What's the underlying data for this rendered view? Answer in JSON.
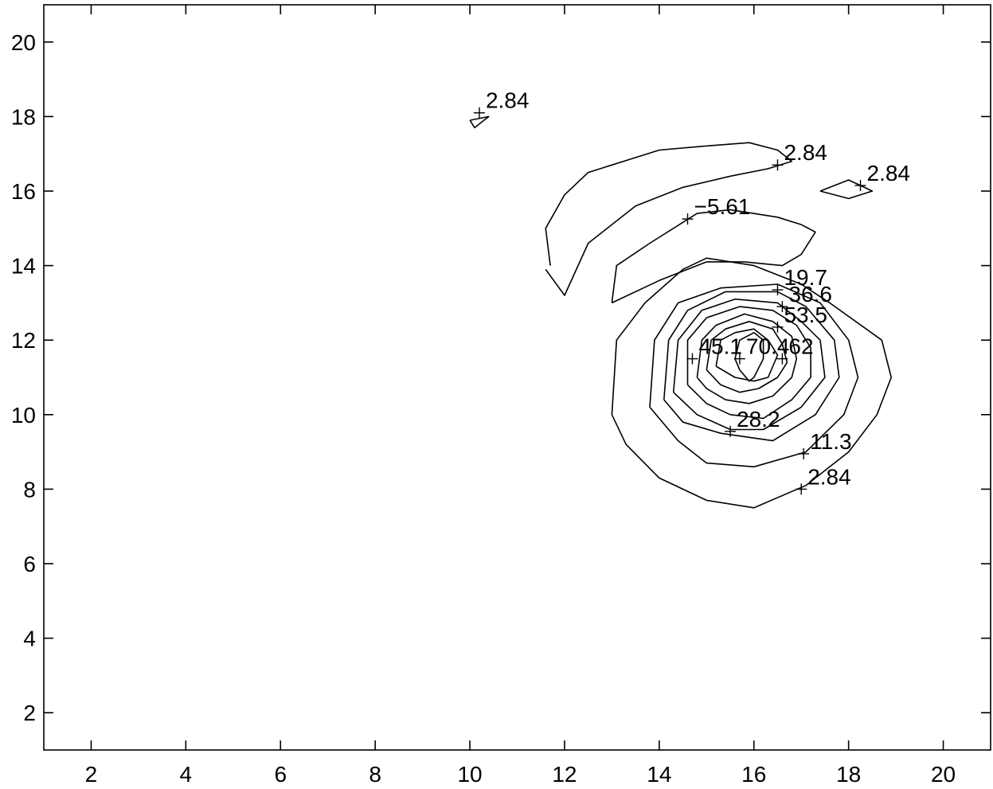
{
  "chart_data": {
    "type": "contour",
    "title": "",
    "xlabel": "",
    "ylabel": "",
    "xlim": [
      1,
      21
    ],
    "ylim": [
      1,
      21
    ],
    "grid": false,
    "x_ticks": [
      2,
      4,
      6,
      8,
      10,
      12,
      14,
      16,
      18,
      20
    ],
    "y_ticks": [
      2,
      4,
      6,
      8,
      10,
      12,
      14,
      16,
      18,
      20
    ],
    "x_tick_labels": [
      "2",
      "4",
      "6",
      "8",
      "10",
      "12",
      "14",
      "16",
      "18",
      "20"
    ],
    "y_tick_labels": [
      "2",
      "4",
      "6",
      "8",
      "10",
      "12",
      "14",
      "16",
      "18",
      "20"
    ],
    "contours": [
      {
        "level": 2.84,
        "points": [
          [
            10.0,
            17.9
          ],
          [
            10.4,
            18.0
          ],
          [
            10.1,
            17.7
          ],
          [
            10.0,
            17.9
          ]
        ]
      },
      {
        "level": 2.84,
        "points": [
          [
            11.7,
            14.0
          ],
          [
            11.6,
            15.0
          ],
          [
            12.0,
            15.9
          ],
          [
            12.5,
            16.5
          ],
          [
            13.5,
            16.9
          ],
          [
            14.0,
            17.1
          ],
          [
            14.9,
            17.2
          ],
          [
            15.9,
            17.3
          ],
          [
            16.5,
            17.1
          ],
          [
            16.8,
            16.8
          ],
          [
            16.3,
            16.6
          ],
          [
            15.5,
            16.4
          ],
          [
            14.5,
            16.1
          ],
          [
            13.5,
            15.6
          ],
          [
            12.5,
            14.6
          ],
          [
            12.0,
            13.2
          ],
          [
            11.6,
            13.9
          ]
        ]
      },
      {
        "level": 2.84,
        "points": [
          [
            17.4,
            16.0
          ],
          [
            18.0,
            16.3
          ],
          [
            18.5,
            16.0
          ],
          [
            18.0,
            15.8
          ],
          [
            17.4,
            16.0
          ]
        ]
      },
      {
        "level": -5.61,
        "points": [
          [
            13.0,
            13.0
          ],
          [
            13.1,
            14.0
          ],
          [
            13.8,
            14.6
          ],
          [
            14.8,
            15.4
          ],
          [
            15.5,
            15.5
          ],
          [
            16.5,
            15.3
          ],
          [
            17.0,
            15.1
          ],
          [
            17.3,
            14.9
          ],
          [
            17.0,
            14.3
          ],
          [
            16.6,
            14.0
          ],
          [
            15.8,
            14.1
          ],
          [
            15.0,
            14.1
          ],
          [
            14.0,
            13.6
          ],
          [
            13.0,
            13.0
          ]
        ]
      },
      {
        "level": 2.84,
        "points": [
          [
            13.0,
            10.0
          ],
          [
            13.1,
            12.0
          ],
          [
            13.7,
            13.0
          ],
          [
            14.5,
            13.9
          ],
          [
            15.0,
            14.2
          ],
          [
            16.0,
            14.0
          ],
          [
            17.0,
            13.5
          ],
          [
            17.6,
            13.0
          ],
          [
            18.7,
            12.0
          ],
          [
            18.9,
            11.0
          ],
          [
            18.6,
            10.0
          ],
          [
            18.0,
            9.0
          ],
          [
            17.1,
            8.1
          ],
          [
            16.0,
            7.5
          ],
          [
            15.0,
            7.7
          ],
          [
            14.0,
            8.3
          ],
          [
            13.3,
            9.2
          ],
          [
            13.0,
            10.0
          ]
        ]
      },
      {
        "level": 11.3,
        "points": [
          [
            13.8,
            10.2
          ],
          [
            13.9,
            12.0
          ],
          [
            14.4,
            13.0
          ],
          [
            15.3,
            13.4
          ],
          [
            16.5,
            13.5
          ],
          [
            17.4,
            13.0
          ],
          [
            18.0,
            12.0
          ],
          [
            18.2,
            11.0
          ],
          [
            17.9,
            10.0
          ],
          [
            17.1,
            9.0
          ],
          [
            16.0,
            8.6
          ],
          [
            15.0,
            8.7
          ],
          [
            14.4,
            9.3
          ],
          [
            13.8,
            10.2
          ]
        ]
      },
      {
        "level": 19.7,
        "points": [
          [
            14.1,
            10.4
          ],
          [
            14.2,
            12.0
          ],
          [
            14.6,
            12.8
          ],
          [
            15.4,
            13.3
          ],
          [
            16.5,
            13.3
          ],
          [
            17.1,
            12.9
          ],
          [
            17.7,
            12.0
          ],
          [
            17.8,
            11.0
          ],
          [
            17.3,
            10.0
          ],
          [
            16.4,
            9.3
          ],
          [
            15.3,
            9.5
          ],
          [
            14.5,
            9.8
          ],
          [
            14.1,
            10.4
          ]
        ]
      },
      {
        "level": 28.2,
        "points": [
          [
            14.3,
            10.6
          ],
          [
            14.4,
            12.0
          ],
          [
            14.9,
            12.8
          ],
          [
            15.6,
            13.1
          ],
          [
            16.5,
            13.0
          ],
          [
            17.0,
            12.5
          ],
          [
            17.4,
            12.0
          ],
          [
            17.5,
            11.0
          ],
          [
            17.0,
            10.2
          ],
          [
            16.2,
            9.6
          ],
          [
            15.5,
            9.6
          ],
          [
            14.8,
            10.0
          ],
          [
            14.3,
            10.6
          ]
        ]
      },
      {
        "level": 36.6,
        "points": [
          [
            14.6,
            10.8
          ],
          [
            14.6,
            12.0
          ],
          [
            15.0,
            12.6
          ],
          [
            15.7,
            12.9
          ],
          [
            16.4,
            12.8
          ],
          [
            16.9,
            12.4
          ],
          [
            17.2,
            11.8
          ],
          [
            17.2,
            11.0
          ],
          [
            16.8,
            10.4
          ],
          [
            16.2,
            9.9
          ],
          [
            15.5,
            10.0
          ],
          [
            15.0,
            10.3
          ],
          [
            14.6,
            10.8
          ]
        ]
      },
      {
        "level": 45.1,
        "points": [
          [
            14.8,
            11.0
          ],
          [
            14.9,
            12.0
          ],
          [
            15.2,
            12.4
          ],
          [
            15.8,
            12.7
          ],
          [
            16.4,
            12.5
          ],
          [
            16.8,
            12.1
          ],
          [
            16.9,
            11.5
          ],
          [
            16.8,
            11.0
          ],
          [
            16.4,
            10.5
          ],
          [
            15.9,
            10.3
          ],
          [
            15.4,
            10.4
          ],
          [
            15.0,
            10.7
          ],
          [
            14.8,
            11.0
          ]
        ]
      },
      {
        "level": 53.5,
        "points": [
          [
            15.0,
            11.2
          ],
          [
            15.1,
            12.0
          ],
          [
            15.4,
            12.3
          ],
          [
            15.9,
            12.5
          ],
          [
            16.4,
            12.3
          ],
          [
            16.6,
            11.9
          ],
          [
            16.7,
            11.4
          ],
          [
            16.5,
            11.0
          ],
          [
            16.1,
            10.7
          ],
          [
            15.7,
            10.6
          ],
          [
            15.3,
            10.8
          ],
          [
            15.0,
            11.2
          ]
        ]
      },
      {
        "level": 62,
        "points": [
          [
            15.2,
            11.3
          ],
          [
            15.3,
            12.0
          ],
          [
            15.6,
            12.2
          ],
          [
            16.0,
            12.3
          ],
          [
            16.3,
            12.0
          ],
          [
            16.5,
            11.6
          ],
          [
            16.3,
            11.0
          ],
          [
            16.0,
            10.9
          ],
          [
            15.6,
            11.0
          ],
          [
            15.2,
            11.3
          ]
        ]
      },
      {
        "level": 70.4,
        "points": [
          [
            15.6,
            11.5
          ],
          [
            15.7,
            12.0
          ],
          [
            16.0,
            12.2
          ],
          [
            16.2,
            12.0
          ],
          [
            16.2,
            11.5
          ],
          [
            16.0,
            11.0
          ],
          [
            15.9,
            10.9
          ],
          [
            15.7,
            11.2
          ],
          [
            15.6,
            11.5
          ]
        ]
      }
    ],
    "labels": [
      {
        "text": "2.84",
        "x": 10.2,
        "y": 18.1
      },
      {
        "text": "2.84",
        "x": 16.5,
        "y": 16.7
      },
      {
        "text": "2.84",
        "x": 18.25,
        "y": 16.15
      },
      {
        "text": "−5.61",
        "x": 14.6,
        "y": 15.25
      },
      {
        "text": "19.7",
        "x": 16.5,
        "y": 13.35
      },
      {
        "text": "36.6",
        "x": 16.6,
        "y": 12.9
      },
      {
        "text": "53.5",
        "x": 16.5,
        "y": 12.35
      },
      {
        "text": "45.1",
        "x": 14.7,
        "y": 11.5
      },
      {
        "text": "70.4",
        "x": 15.7,
        "y": 11.5
      },
      {
        "text": "62",
        "x": 16.6,
        "y": 11.5
      },
      {
        "text": "28.2",
        "x": 15.5,
        "y": 9.55
      },
      {
        "text": "11.3",
        "x": 17.05,
        "y": 8.95
      },
      {
        "text": "2.84",
        "x": 17.0,
        "y": 8.0
      }
    ]
  }
}
